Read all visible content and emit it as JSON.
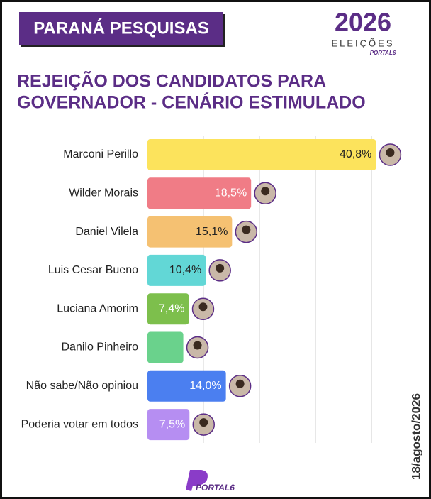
{
  "header": {
    "badge": "PARANÁ PESQUISAS",
    "logo_year": "2026",
    "logo_word": "ELEIÇÕES",
    "logo_brand": "PORTAL6"
  },
  "chart_data": {
    "type": "hbar",
    "title_lines": [
      "REJEIÇÃO DOS CANDIDATOS PARA",
      "GOVERNADOR - CENÁRIO ESTIMULADO"
    ],
    "categories": [
      "Marconi Perillo",
      "Wilder Morais",
      "Daniel Vilela",
      "Luis Cesar Bueno",
      "Luciana Amorim",
      "Danilo Pinheiro",
      "Não sabe/Não opiniou",
      "Poderia votar em todos"
    ],
    "values": [
      40.8,
      18.5,
      15.1,
      10.4,
      7.4,
      6.4,
      14.0,
      7.5
    ],
    "value_labels": [
      "40,8%",
      "18,5%",
      "15,1%",
      "10,4%",
      "7,4%",
      null,
      "14,0%",
      "7,5%"
    ],
    "colors": [
      "#fce35c",
      "#f07c86",
      "#f5c172",
      "#62d7d6",
      "#7dbf4c",
      "#6ad28c",
      "#4b7ff0",
      "#b68ef2"
    ],
    "label_colors": [
      "#222222",
      "#ffffff",
      "#222222",
      "#222222",
      "#ffffff",
      null,
      "#ffffff",
      "#ffffff"
    ],
    "xlim": [
      0,
      41
    ],
    "xticks": [
      10,
      20,
      30,
      40
    ],
    "grid": true
  },
  "date": "18/agosto/2026",
  "footer": {
    "brand": "PORTAL6"
  }
}
